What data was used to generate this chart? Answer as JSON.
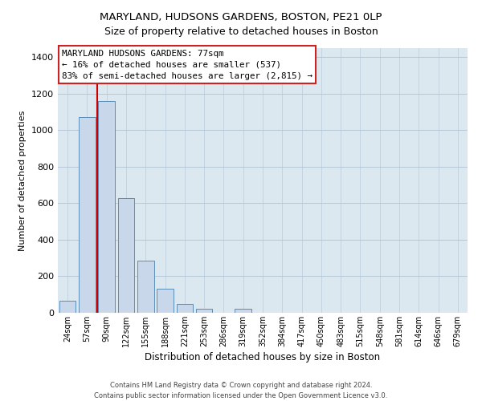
{
  "title": "MARYLAND, HUDSONS GARDENS, BOSTON, PE21 0LP",
  "subtitle": "Size of property relative to detached houses in Boston",
  "xlabel": "Distribution of detached houses by size in Boston",
  "ylabel": "Number of detached properties",
  "bar_labels": [
    "24sqm",
    "57sqm",
    "90sqm",
    "122sqm",
    "155sqm",
    "188sqm",
    "221sqm",
    "253sqm",
    "286sqm",
    "319sqm",
    "352sqm",
    "384sqm",
    "417sqm",
    "450sqm",
    "483sqm",
    "515sqm",
    "548sqm",
    "581sqm",
    "614sqm",
    "646sqm",
    "679sqm"
  ],
  "bar_values": [
    65,
    1070,
    1160,
    630,
    285,
    130,
    48,
    22,
    0,
    20,
    0,
    0,
    0,
    0,
    0,
    0,
    0,
    0,
    0,
    0,
    0
  ],
  "bar_color": "#c8d8ea",
  "bar_edge_color": "#5b8db8",
  "vline_color": "#cc0000",
  "vline_x": 1.5,
  "ylim": [
    0,
    1450
  ],
  "yticks": [
    0,
    200,
    400,
    600,
    800,
    1000,
    1200,
    1400
  ],
  "annotation_title": "MARYLAND HUDSONS GARDENS: 77sqm",
  "annotation_line1": "← 16% of detached houses are smaller (537)",
  "annotation_line2": "83% of semi-detached houses are larger (2,815) →",
  "footer_line1": "Contains HM Land Registry data © Crown copyright and database right 2024.",
  "footer_line2": "Contains public sector information licensed under the Open Government Licence v3.0.",
  "plot_bg_color": "#dce8f0",
  "grid_color": "#b0c4d4",
  "title_fontsize": 9.5,
  "subtitle_fontsize": 9.0
}
